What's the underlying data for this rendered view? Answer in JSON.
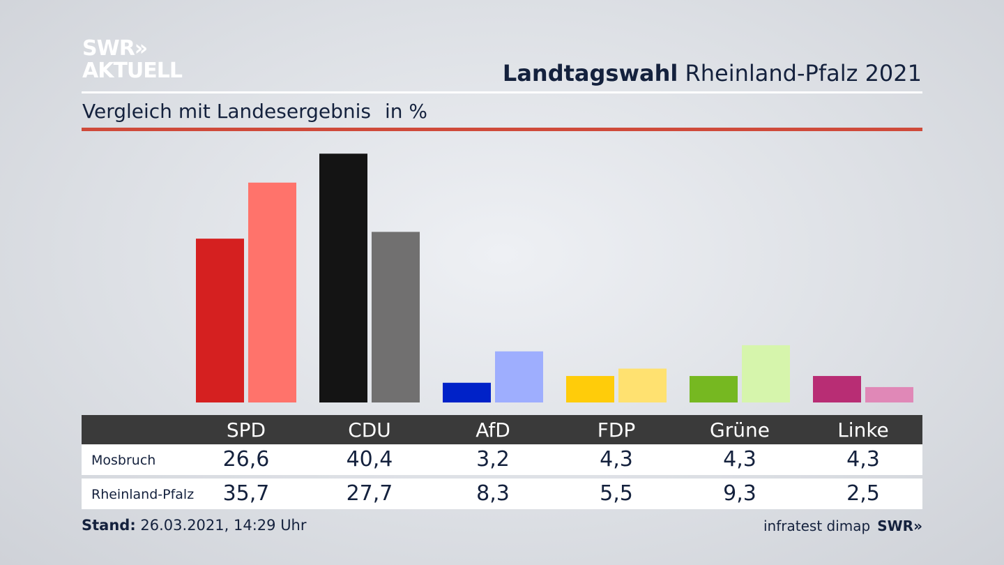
{
  "brand": {
    "line1": "SWR»",
    "line2": "AKTUELL",
    "footer_logo": "SWR»"
  },
  "header": {
    "title_bold": "Landtagswahl",
    "title_rest": "Rheinland-Pfalz 2021"
  },
  "subtitle": {
    "text": "Vergleich mit Landesergebnis",
    "unit": "in %"
  },
  "footer": {
    "stand_label": "Stand:",
    "stand_value": "26.03.2021, 14:29 Uhr",
    "source": "infratest dimap"
  },
  "colors": {
    "accent_rule": "#cf4a3a",
    "table_header": "#3a3a3a",
    "text": "#14213d"
  },
  "chart_data": {
    "type": "bar",
    "categories": [
      "SPD",
      "CDU",
      "AfD",
      "FDP",
      "Grüne",
      "Linke"
    ],
    "series": [
      {
        "name": "Mosbruch",
        "values": [
          26.6,
          40.4,
          3.2,
          4.3,
          4.3,
          4.3
        ],
        "display": [
          "26,6",
          "40,4",
          "3,2",
          "4,3",
          "4,3",
          "4,3"
        ],
        "colors": [
          "#d52020",
          "#141414",
          "#0022c8",
          "#ffcc0a",
          "#76b821",
          "#b82d74"
        ]
      },
      {
        "name": "Rheinland-Pfalz",
        "values": [
          35.7,
          27.7,
          8.3,
          5.5,
          9.3,
          2.5
        ],
        "display": [
          "35,7",
          "27,7",
          "8,3",
          "5,5",
          "9,3",
          "2,5"
        ],
        "colors": [
          "#ff736b",
          "#717070",
          "#9eaefe",
          "#ffe170",
          "#d6f5ac",
          "#e088b7"
        ]
      }
    ],
    "ylim": [
      0,
      41
    ]
  }
}
